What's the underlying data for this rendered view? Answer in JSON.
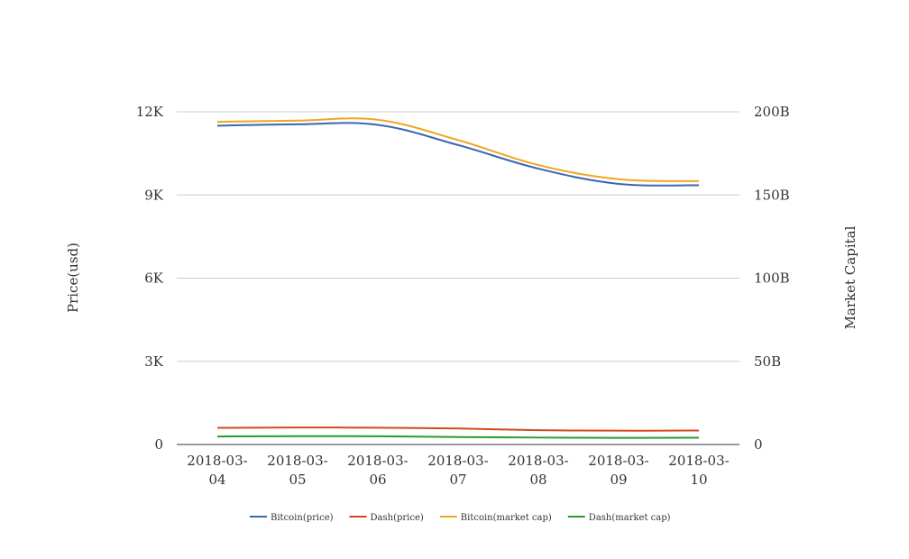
{
  "chart_data": {
    "type": "line",
    "x": [
      "2018-03-04",
      "2018-03-05",
      "2018-03-06",
      "2018-03-07",
      "2018-03-08",
      "2018-03-09",
      "2018-03-10"
    ],
    "x_tick_labels": [
      [
        "2018-03-",
        "04"
      ],
      [
        "2018-03-",
        "05"
      ],
      [
        "2018-03-",
        "06"
      ],
      [
        "2018-03-",
        "07"
      ],
      [
        "2018-03-",
        "08"
      ],
      [
        "2018-03-",
        "09"
      ],
      [
        "2018-03-",
        "10"
      ]
    ],
    "ylabel": "Price(usd)",
    "y2label": "Market Capital",
    "ylim": [
      0,
      12000
    ],
    "y2lim": [
      0,
      200000000000
    ],
    "y_ticks": [
      {
        "value": 0,
        "label": "0"
      },
      {
        "value": 3000,
        "label": "3K"
      },
      {
        "value": 6000,
        "label": "6K"
      },
      {
        "value": 9000,
        "label": "9K"
      },
      {
        "value": 12000,
        "label": "12K"
      }
    ],
    "y2_ticks": [
      {
        "value": 0,
        "label": "0"
      },
      {
        "value": 50000000000,
        "label": "50B"
      },
      {
        "value": 100000000000,
        "label": "100B"
      },
      {
        "value": 150000000000,
        "label": "150B"
      },
      {
        "value": 200000000000,
        "label": "200B"
      }
    ],
    "grid": true,
    "legend_position": "bottom-center",
    "series": [
      {
        "name": "Bitcoin(price)",
        "axis": "left",
        "color": "#3b66b3",
        "values": [
          11500,
          11550,
          11530,
          10800,
          9950,
          9400,
          9350
        ]
      },
      {
        "name": "Dash(price)",
        "axis": "right",
        "color": "#d24a1f",
        "values": [
          10000000000,
          10200000000,
          10100000000,
          9600000000,
          8600000000,
          8300000000,
          8400000000
        ]
      },
      {
        "name": "Bitcoin(market cap)",
        "axis": "right",
        "color": "#f0a623",
        "values": [
          194000000000,
          194700000000,
          195200000000,
          183000000000,
          168000000000,
          159500000000,
          158300000000
        ]
      },
      {
        "name": "Dash(market cap)",
        "axis": "left",
        "color": "#22a02c",
        "values": [
          290,
          300,
          295,
          270,
          250,
          240,
          245
        ]
      }
    ]
  }
}
